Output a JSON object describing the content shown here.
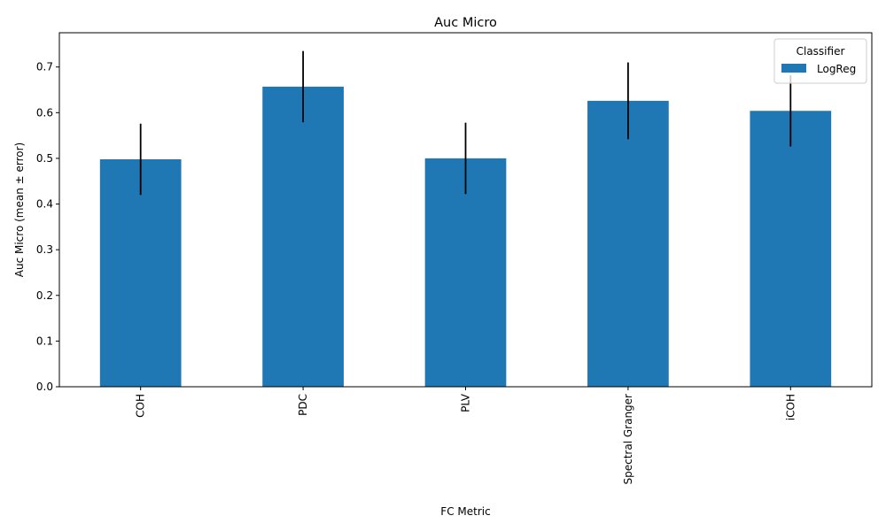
{
  "chart_data": {
    "type": "bar",
    "title": "Auc Micro",
    "xlabel": "FC Metric",
    "ylabel": "Auc Micro (mean ± error)",
    "categories": [
      "COH",
      "PDC",
      "PLV",
      "Spectral Granger",
      "iCOH"
    ],
    "series": [
      {
        "name": "LogReg",
        "color": "#1f77b4",
        "values": [
          0.498,
          0.657,
          0.5,
          0.626,
          0.604
        ],
        "errors": [
          0.078,
          0.078,
          0.078,
          0.084,
          0.078
        ]
      }
    ],
    "ylim": [
      0,
      0.775
    ],
    "yticks": [
      "0.0",
      "0.1",
      "0.2",
      "0.3",
      "0.4",
      "0.5",
      "0.6",
      "0.7"
    ],
    "legend": {
      "title": "Classifier",
      "placement": "top-right"
    },
    "grid": false
  }
}
